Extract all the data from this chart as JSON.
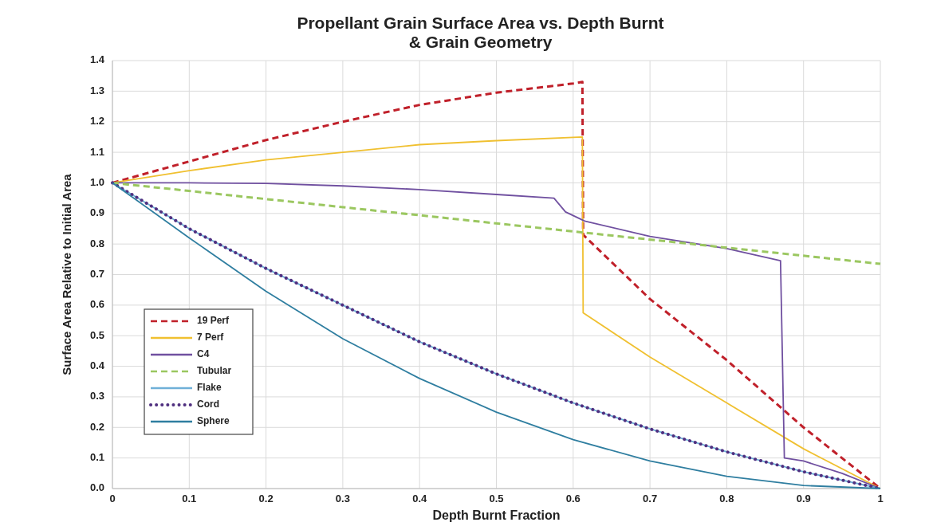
{
  "chart_data": {
    "type": "line",
    "title": "Propellant Grain Surface Area vs. Depth Burnt\n& Grain Geometry",
    "xlabel": "Depth Burnt Fraction",
    "ylabel": "Surface Area Relative to Initial Area",
    "xlim": [
      0,
      1
    ],
    "xticks": [
      0,
      0.1,
      0.2,
      0.3,
      0.4,
      0.5,
      0.6,
      0.7,
      0.8,
      0.9,
      1
    ],
    "ylim": [
      0,
      1.4
    ],
    "yticks": [
      {
        "value": 0,
        "label": "0.0"
      },
      {
        "value": 0.1,
        "label": "0.1"
      },
      {
        "value": 0.2,
        "label": "0.2"
      },
      {
        "value": 0.3,
        "label": "0.3"
      },
      {
        "value": 0.4,
        "label": "0.4"
      },
      {
        "value": 0.5,
        "label": "0.5"
      },
      {
        "value": 0.6,
        "label": "0.6"
      },
      {
        "value": 0.7,
        "label": "0.7"
      },
      {
        "value": 0.8,
        "label": "0.8"
      },
      {
        "value": 0.9,
        "label": "0.9"
      },
      {
        "value": 1,
        "label": "1.0"
      },
      {
        "value": 1.1,
        "label": "1.1"
      },
      {
        "value": 1.2,
        "label": "1.2"
      },
      {
        "value": 1.3,
        "label": "1.3"
      },
      {
        "value": 1.4,
        "label": "1.4"
      }
    ],
    "grid": true,
    "legend": "left",
    "series": [
      {
        "name": "19 Perf",
        "color": "#c0202a",
        "line_style": "dashed",
        "x": [
          0,
          0.1,
          0.2,
          0.3,
          0.4,
          0.5,
          0.6,
          0.612,
          0.613,
          0.7,
          0.8,
          0.9,
          1
        ],
        "values": [
          1,
          1.07,
          1.14,
          1.2,
          1.255,
          1.295,
          1.325,
          1.33,
          0.83,
          0.62,
          0.42,
          0.2,
          0
        ]
      },
      {
        "name": "7 Perf",
        "color": "#f0c030",
        "line_style": "solid",
        "x": [
          0,
          0.1,
          0.2,
          0.3,
          0.4,
          0.5,
          0.612,
          0.613,
          0.7,
          0.8,
          0.9,
          1
        ],
        "values": [
          1,
          1.04,
          1.075,
          1.1,
          1.125,
          1.138,
          1.15,
          0.575,
          0.43,
          0.28,
          0.13,
          0
        ]
      },
      {
        "name": "C4",
        "color": "#7050a0",
        "line_style": "solid",
        "x": [
          0,
          0.1,
          0.2,
          0.3,
          0.4,
          0.5,
          0.575,
          0.59,
          0.615,
          0.7,
          0.8,
          0.87,
          0.875,
          0.9,
          0.95,
          1
        ],
        "values": [
          1,
          1,
          0.998,
          0.99,
          0.978,
          0.962,
          0.95,
          0.905,
          0.875,
          0.825,
          0.785,
          0.745,
          0.1,
          0.09,
          0.05,
          0
        ]
      },
      {
        "name": "Tubular",
        "color": "#9bc760",
        "line_style": "dashed",
        "x": [
          0,
          1
        ],
        "values": [
          1,
          0.735
        ]
      },
      {
        "name": "Flake",
        "color": "#6fb0d8",
        "line_style": "solid",
        "x": [
          0,
          0.1,
          0.2,
          0.3,
          0.4,
          0.5,
          0.6,
          0.7,
          0.8,
          0.9,
          1
        ],
        "values": [
          1,
          0.85,
          0.72,
          0.6,
          0.48,
          0.375,
          0.28,
          0.195,
          0.12,
          0.055,
          0
        ]
      },
      {
        "name": "Cord",
        "color": "#503080",
        "line_style": "dotted",
        "x": [
          0,
          0.1,
          0.2,
          0.3,
          0.4,
          0.5,
          0.6,
          0.7,
          0.8,
          0.9,
          1
        ],
        "values": [
          1,
          0.85,
          0.72,
          0.6,
          0.48,
          0.375,
          0.28,
          0.195,
          0.12,
          0.055,
          0
        ]
      },
      {
        "name": "Sphere",
        "color": "#2f7ea0",
        "line_style": "solid",
        "x": [
          0,
          0.1,
          0.2,
          0.3,
          0.4,
          0.5,
          0.6,
          0.7,
          0.8,
          0.9,
          1
        ],
        "values": [
          1,
          0.82,
          0.645,
          0.49,
          0.36,
          0.25,
          0.16,
          0.09,
          0.04,
          0.01,
          0
        ]
      }
    ]
  }
}
